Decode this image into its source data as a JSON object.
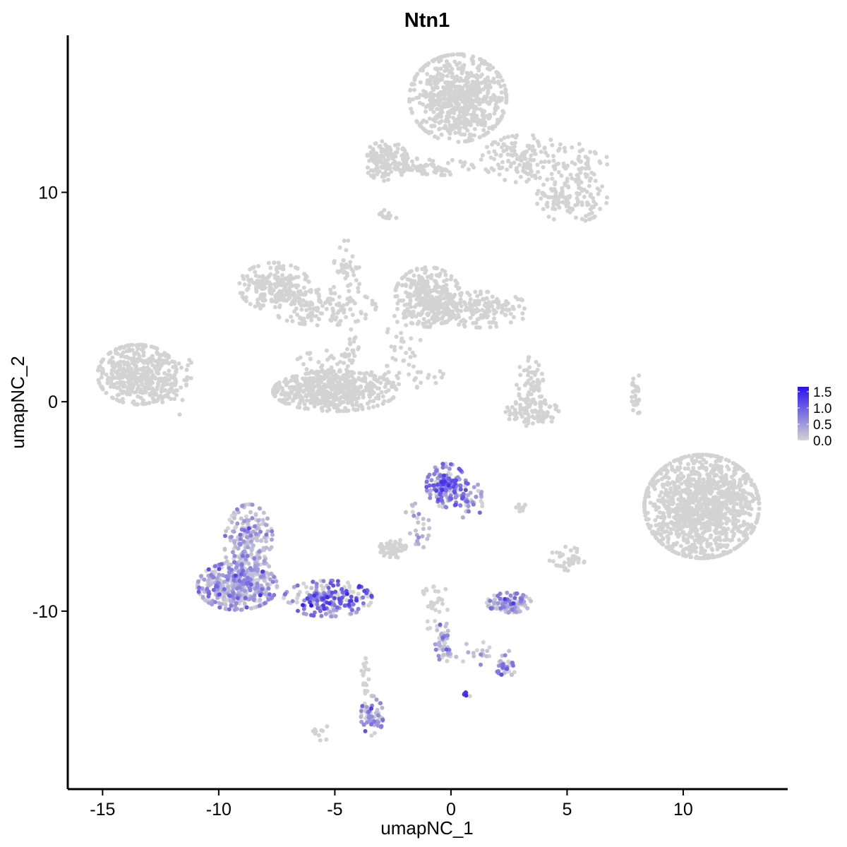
{
  "chart_data": {
    "type": "scatter",
    "title": "Ntn1",
    "xlabel": "umapNC_1",
    "ylabel": "umapNC_2",
    "xlim": [
      -16.5,
      14.5
    ],
    "ylim": [
      -18.5,
      17.5
    ],
    "x_ticks": [
      -15,
      -10,
      -5,
      0,
      5,
      10
    ],
    "x_tick_labels": [
      "-15",
      "-10",
      "-5",
      "0",
      "5",
      "10"
    ],
    "y_ticks": [
      -10,
      0,
      10
    ],
    "y_tick_labels": [
      "-10",
      "0",
      "10"
    ],
    "grid": false,
    "legend_position": "right",
    "color_scale": {
      "low_color": "#d3d3d3",
      "high_color": "#2a12f0",
      "min": 0.0,
      "max": 1.65,
      "ticks": [
        0.0,
        0.5,
        1.0,
        1.5
      ],
      "tick_labels": [
        "0.0",
        "0.5",
        "1.0",
        "1.5"
      ]
    },
    "clusters": [
      {
        "cx": 0.3,
        "cy": 14.5,
        "sx": 1.1,
        "sy": 1.1,
        "n": 700,
        "expr": 0
      },
      {
        "cx": -2.8,
        "cy": 11.5,
        "sx": 0.5,
        "sy": 0.5,
        "n": 130,
        "expr": 0
      },
      {
        "cx": -1.3,
        "cy": 11.2,
        "sx": 1.2,
        "sy": 0.22,
        "n": 90,
        "expr": 0
      },
      {
        "cx": 3.2,
        "cy": 11.6,
        "sx": 1.0,
        "sy": 0.6,
        "n": 150,
        "expr": 0
      },
      {
        "cx": 5.2,
        "cy": 9.7,
        "sx": 0.8,
        "sy": 0.6,
        "n": 140,
        "expr": 0
      },
      {
        "cx": 5.8,
        "cy": 11.4,
        "sx": 0.5,
        "sy": 0.5,
        "n": 40,
        "expr": 0
      },
      {
        "cx": -2.7,
        "cy": 8.9,
        "sx": 0.2,
        "sy": 0.15,
        "n": 15,
        "expr": 0
      },
      {
        "cx": -7.6,
        "cy": 5.5,
        "sx": 0.8,
        "sy": 0.6,
        "n": 200,
        "expr": 0
      },
      {
        "cx": -5.5,
        "cy": 4.5,
        "sx": 1.2,
        "sy": 0.45,
        "n": 140,
        "expr": 0
      },
      {
        "cx": -4.5,
        "cy": 6.0,
        "sx": 0.3,
        "sy": 0.9,
        "n": 45,
        "expr": 0
      },
      {
        "cx": -1.0,
        "cy": 5.0,
        "sx": 0.75,
        "sy": 0.75,
        "n": 300,
        "expr": 0
      },
      {
        "cx": 1.3,
        "cy": 4.4,
        "sx": 1.1,
        "sy": 0.45,
        "n": 180,
        "expr": 0
      },
      {
        "cx": -5.0,
        "cy": 0.5,
        "sx": 1.4,
        "sy": 0.5,
        "n": 500,
        "expr": 0
      },
      {
        "cx": -5.5,
        "cy": 1.5,
        "sx": 0.7,
        "sy": 0.5,
        "n": 60,
        "expr": 0
      },
      {
        "cx": -4.3,
        "cy": 2.5,
        "sx": 0.2,
        "sy": 0.6,
        "n": 25,
        "expr": 0
      },
      {
        "cx": -2.0,
        "cy": 1.2,
        "sx": 0.9,
        "sy": 0.3,
        "n": 35,
        "expr": 0
      },
      {
        "cx": -2.0,
        "cy": 3.0,
        "sx": 0.4,
        "sy": 0.7,
        "n": 30,
        "expr": 0
      },
      {
        "cx": -13.5,
        "cy": 1.3,
        "sx": 0.9,
        "sy": 0.75,
        "n": 400,
        "expr": 0
      },
      {
        "cx": -12.0,
        "cy": 1.0,
        "sx": 0.5,
        "sy": 0.9,
        "n": 60,
        "expr": 0
      },
      {
        "cx": 3.5,
        "cy": -0.5,
        "sx": 0.6,
        "sy": 0.35,
        "n": 100,
        "expr": 0
      },
      {
        "cx": 3.4,
        "cy": 0.8,
        "sx": 0.3,
        "sy": 0.7,
        "n": 60,
        "expr": 0
      },
      {
        "cx": 8.0,
        "cy": 0.3,
        "sx": 0.12,
        "sy": 0.55,
        "n": 25,
        "expr": 0
      },
      {
        "cx": 10.8,
        "cy": -5.0,
        "sx": 1.3,
        "sy": 1.3,
        "n": 1200,
        "expr": 0
      },
      {
        "cx": -8.7,
        "cy": -6.8,
        "sx": 0.55,
        "sy": 1.0,
        "n": 250,
        "expr": 0.2
      },
      {
        "cx": -9.2,
        "cy": -8.8,
        "sx": 0.9,
        "sy": 0.6,
        "n": 400,
        "expr": 0.35
      },
      {
        "cx": -5.3,
        "cy": -9.4,
        "sx": 1.0,
        "sy": 0.45,
        "n": 220,
        "expr": 0.8
      },
      {
        "cx": -0.2,
        "cy": -4.0,
        "sx": 0.45,
        "sy": 0.55,
        "n": 180,
        "expr": 0.75
      },
      {
        "cx": 0.8,
        "cy": -4.7,
        "sx": 0.3,
        "sy": 0.5,
        "n": 40,
        "expr": 0.6
      },
      {
        "cx": -2.5,
        "cy": -7.0,
        "sx": 0.3,
        "sy": 0.25,
        "n": 60,
        "expr": 0
      },
      {
        "cx": -1.5,
        "cy": -6.0,
        "sx": 0.3,
        "sy": 0.6,
        "n": 25,
        "expr": 0.3
      },
      {
        "cx": 2.5,
        "cy": -9.6,
        "sx": 0.5,
        "sy": 0.25,
        "n": 120,
        "expr": 0.35
      },
      {
        "cx": -0.3,
        "cy": -11.5,
        "sx": 0.2,
        "sy": 0.5,
        "n": 50,
        "expr": 0.4
      },
      {
        "cx": -0.7,
        "cy": -9.7,
        "sx": 0.3,
        "sy": 0.7,
        "n": 30,
        "expr": 0
      },
      {
        "cx": 2.4,
        "cy": -12.7,
        "sx": 0.25,
        "sy": 0.2,
        "n": 40,
        "expr": 0.5
      },
      {
        "cx": 1.6,
        "cy": -12.0,
        "sx": 0.8,
        "sy": 0.3,
        "n": 20,
        "expr": 0.2
      },
      {
        "cx": 0.7,
        "cy": -14.0,
        "sx": 0.07,
        "sy": 0.07,
        "n": 6,
        "expr": 1.5
      },
      {
        "cx": -3.4,
        "cy": -15.0,
        "sx": 0.25,
        "sy": 0.5,
        "n": 70,
        "expr": 0.5
      },
      {
        "cx": -3.7,
        "cy": -13.0,
        "sx": 0.1,
        "sy": 0.5,
        "n": 20,
        "expr": 0
      },
      {
        "cx": 5.0,
        "cy": -7.5,
        "sx": 0.4,
        "sy": 0.3,
        "n": 40,
        "expr": 0
      },
      {
        "cx": 3.0,
        "cy": -5.0,
        "sx": 0.15,
        "sy": 0.15,
        "n": 8,
        "expr": 0
      },
      {
        "cx": -5.5,
        "cy": -15.8,
        "sx": 0.3,
        "sy": 0.2,
        "n": 10,
        "expr": 0
      }
    ]
  }
}
